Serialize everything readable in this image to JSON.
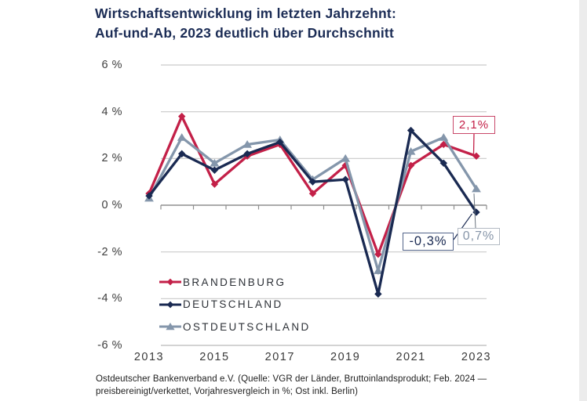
{
  "title": {
    "line1": "Wirtschaftsentwicklung im letzten Jahrzehnt:",
    "line2": "Auf-und-Ab, 2023 deutlich über Durchschnitt"
  },
  "footer": {
    "line1": "Ostdeutscher Bankenverband e.V. (Quelle: VGR der Länder, Bruttoinlandsprodukt; Feb. 2024 —",
    "line2": "preisbereinigt/verkettet, Vorjahresvergleich in %; Ost inkl. Berlin)"
  },
  "colors": {
    "title": "#1b2c55",
    "brandenburg": "#c32048",
    "deutschland": "#1a2a52",
    "ostdeutschland": "#8496ab",
    "gridline": "#c9c9c9",
    "zero_axis": "#8f8f8f"
  },
  "chart_data": {
    "type": "line",
    "title": "Wirtschaftsentwicklung im letzten Jahrzehnt: Auf-und-Ab, 2023 deutlich über Durchschnitt",
    "x": [
      2013,
      2014,
      2015,
      2016,
      2017,
      2018,
      2019,
      2020,
      2021,
      2022,
      2023
    ],
    "series": [
      {
        "name": "BRANDENBURG",
        "color": "#c32048",
        "marker": "diamond",
        "values": [
          0.5,
          3.8,
          0.9,
          2.1,
          2.6,
          0.5,
          1.7,
          -2.1,
          1.7,
          2.6,
          2.1
        ]
      },
      {
        "name": "DEUTSCHLAND",
        "color": "#1a2a52",
        "marker": "diamond",
        "values": [
          0.4,
          2.2,
          1.5,
          2.2,
          2.7,
          1.0,
          1.1,
          -3.8,
          3.2,
          1.8,
          -0.3
        ]
      },
      {
        "name": "OSTDEUTSCHLAND",
        "color": "#8496ab",
        "marker": "triangle",
        "values": [
          0.3,
          2.9,
          1.8,
          2.6,
          2.8,
          1.1,
          2.0,
          -2.8,
          2.3,
          2.9,
          0.7
        ]
      }
    ],
    "ylim": [
      -6,
      6
    ],
    "ylabel": "%",
    "grid": "horizontal",
    "legend_position": "inside-bottom-left",
    "z_order": [
      0,
      2,
      1
    ],
    "y_ticks": [
      {
        "value": 6,
        "label": "6 %"
      },
      {
        "value": 4,
        "label": "4 %"
      },
      {
        "value": 2,
        "label": "2 %"
      },
      {
        "value": 0,
        "label": "0 %"
      },
      {
        "value": -2,
        "label": "-2 %"
      },
      {
        "value": -4,
        "label": "-4 %"
      },
      {
        "value": -6,
        "label": "-6 %"
      }
    ],
    "x_tick_labels": [
      "2013",
      "2015",
      "2017",
      "2019",
      "2021",
      "2023"
    ],
    "annotations": [
      {
        "text": "2,1%",
        "series": "BRANDENBURG",
        "year": 2023,
        "value": 2.1,
        "color": "#c32048",
        "border_color": "#c9486a"
      },
      {
        "text": "-0,3%",
        "series": "DEUTSCHLAND",
        "year": 2023,
        "value": -0.3,
        "color": "#1a2a52",
        "border_color": "#54658a"
      },
      {
        "text": "0,7%",
        "series": "OSTDEUTSCHLAND",
        "year": 2023,
        "value": 0.7,
        "color": "#8695a8",
        "border_color": "#b3bac3"
      }
    ]
  }
}
